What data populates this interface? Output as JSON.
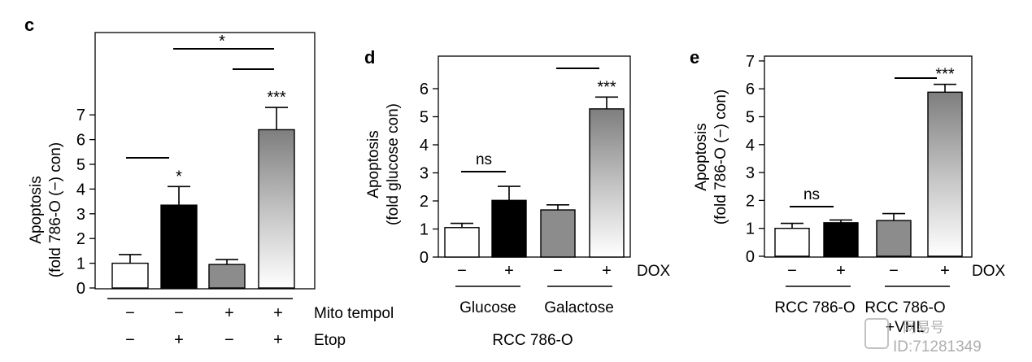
{
  "chart_data": [
    {
      "panel": "c",
      "type": "bar",
      "ylabel_lines": [
        "Apoptosis",
        "(fold 786-O (−) con)"
      ],
      "ylim": [
        0,
        7
      ],
      "yticks": [
        "0",
        "1",
        "2",
        "3",
        "4",
        "5",
        "6",
        "7"
      ],
      "values": [
        1.0,
        3.35,
        0.95,
        6.4
      ],
      "errors": [
        0.35,
        0.75,
        0.2,
        0.9
      ],
      "fills": [
        "white",
        "black",
        "gray",
        "gradient"
      ],
      "bar_labels": [
        "",
        "*",
        "",
        "***"
      ],
      "row_labels": [
        "Mito tempol",
        "Etop"
      ],
      "row_values": [
        [
          "−",
          "−",
          "+",
          "+"
        ],
        [
          "−",
          "+",
          "−",
          "+"
        ]
      ],
      "bracket_labels": [
        "*"
      ]
    },
    {
      "panel": "d",
      "type": "bar",
      "ylabel_lines": [
        "Apoptosis",
        "(fold glucose con)"
      ],
      "ylim": [
        0,
        6
      ],
      "yticks": [
        "0",
        "1",
        "2",
        "3",
        "4",
        "5",
        "6"
      ],
      "values": [
        1.05,
        2.02,
        1.68,
        5.28
      ],
      "errors": [
        0.15,
        0.5,
        0.18,
        0.42
      ],
      "fills": [
        "white",
        "black",
        "gray",
        "gradient"
      ],
      "bar_labels": [
        "",
        "",
        "",
        "***"
      ],
      "signs": [
        "−",
        "+",
        "−",
        "+"
      ],
      "sign_label": "DOX",
      "groups": [
        "Glucose",
        "Galactose"
      ],
      "bracket_labels": [
        "ns"
      ],
      "footer": "RCC 786-O"
    },
    {
      "panel": "e",
      "type": "bar",
      "ylabel_lines": [
        "Apoptosis",
        "(fold 786-O (−) con)"
      ],
      "ylim": [
        0,
        7
      ],
      "yticks": [
        "0",
        "1",
        "2",
        "3",
        "4",
        "5",
        "6",
        "7"
      ],
      "values": [
        1.0,
        1.2,
        1.28,
        5.88
      ],
      "errors": [
        0.18,
        0.1,
        0.25,
        0.28
      ],
      "fills": [
        "white",
        "black",
        "gray",
        "gradient"
      ],
      "bar_labels": [
        "",
        "",
        "",
        "***"
      ],
      "signs": [
        "−",
        "+",
        "−",
        "+"
      ],
      "sign_label": "DOX",
      "groups": [
        "RCC 786-O",
        "RCC 786-O"
      ],
      "group_sub": "+VHL",
      "bracket_labels": [
        "ns"
      ]
    }
  ],
  "watermark": {
    "line1": "网易号",
    "line2": "ID:71281349"
  }
}
